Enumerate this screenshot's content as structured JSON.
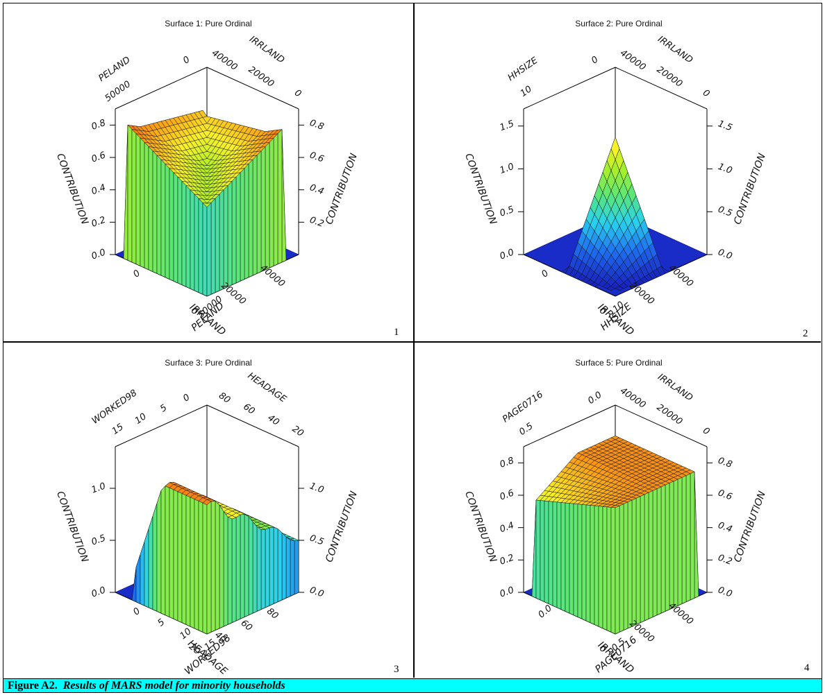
{
  "figure": {
    "caption_label": "Figure A2.",
    "caption_text": "Results of MARS model for minority households"
  },
  "panels": [
    {
      "id": "1",
      "title": "Surface 1: Pure Ordinal",
      "number": "1"
    },
    {
      "id": "2",
      "title": "Surface 2: Pure Ordinal",
      "number": "2"
    },
    {
      "id": "3",
      "title": "Surface 3: Pure Ordinal",
      "number": "3"
    },
    {
      "id": "4",
      "title": "Surface 5: Pure Ordinal",
      "number": "4"
    }
  ],
  "chart_data": [
    {
      "type": "surface3d",
      "title": "Surface 1: Pure Ordinal",
      "x_label": "IRRLAND",
      "x_ticks": [
        "40000",
        "20000",
        "0"
      ],
      "y_label": "PELAND",
      "y_ticks": [
        "0",
        "50000"
      ],
      "z_label": "CONTRIBUTION",
      "z_ticks_left": [
        "0.0",
        "0.2",
        "0.4",
        "0.6",
        "0.8"
      ],
      "z_ticks_right": [
        "0.2",
        "0.4",
        "0.6",
        "0.8"
      ],
      "back_left_ticks": [
        "0",
        "50000"
      ],
      "back_right_ticks": [
        "40000",
        "20000",
        "0"
      ],
      "zlim": [
        0,
        0.9
      ]
    },
    {
      "type": "surface3d",
      "title": "Surface 2: Pure Ordinal",
      "x_label": "IRRLAND",
      "x_ticks": [
        "40000",
        "20000",
        "0"
      ],
      "y_label": "HHSIZE",
      "y_ticks": [
        "0",
        "10"
      ],
      "z_label": "CONTRIBUTION",
      "z_ticks_left": [
        "0.0",
        "0.5",
        "1.0",
        "1.5"
      ],
      "z_ticks_right": [
        "0.0",
        "0.5",
        "1.0",
        "1.5"
      ],
      "back_left_ticks": [
        "0",
        "10"
      ],
      "back_right_ticks": [
        "40000",
        "20000",
        "0"
      ],
      "zlim": [
        0,
        1.7
      ]
    },
    {
      "type": "surface3d",
      "title": "Surface 3: Pure Ordinal",
      "x_label": "HEADAGE",
      "x_ticks": [
        "80",
        "60",
        "40",
        "20"
      ],
      "y_label": "WORKED98",
      "y_ticks": [
        "0",
        "5",
        "10",
        "15"
      ],
      "z_label": "CONTRIBUTION",
      "z_ticks_left": [
        "0.0",
        "0.5",
        "1.0"
      ],
      "z_ticks_right": [
        "0.0",
        "0.5",
        "1.0"
      ],
      "back_left_ticks": [
        "0",
        "5",
        "10",
        "15"
      ],
      "back_right_ticks": [
        "80",
        "60",
        "40",
        "20"
      ],
      "zlim": [
        0,
        1.4
      ]
    },
    {
      "type": "surface3d",
      "title": "Surface 5: Pure Ordinal",
      "x_label": "IRRLAND",
      "x_ticks": [
        "40000",
        "20000",
        "0"
      ],
      "y_label": "PAGE0716",
      "y_ticks": [
        "0.0",
        "0.5"
      ],
      "z_label": "CONTRIBUTION",
      "z_ticks_left": [
        "0.0",
        "0.2",
        "0.4",
        "0.6",
        "0.8"
      ],
      "z_ticks_right": [
        "0.0",
        "0.2",
        "0.4",
        "0.6",
        "0.8"
      ],
      "back_left_ticks": [
        "0.0",
        "0.5"
      ],
      "back_right_ticks": [
        "40000",
        "20000",
        "0"
      ],
      "zlim": [
        0,
        0.9
      ]
    }
  ]
}
